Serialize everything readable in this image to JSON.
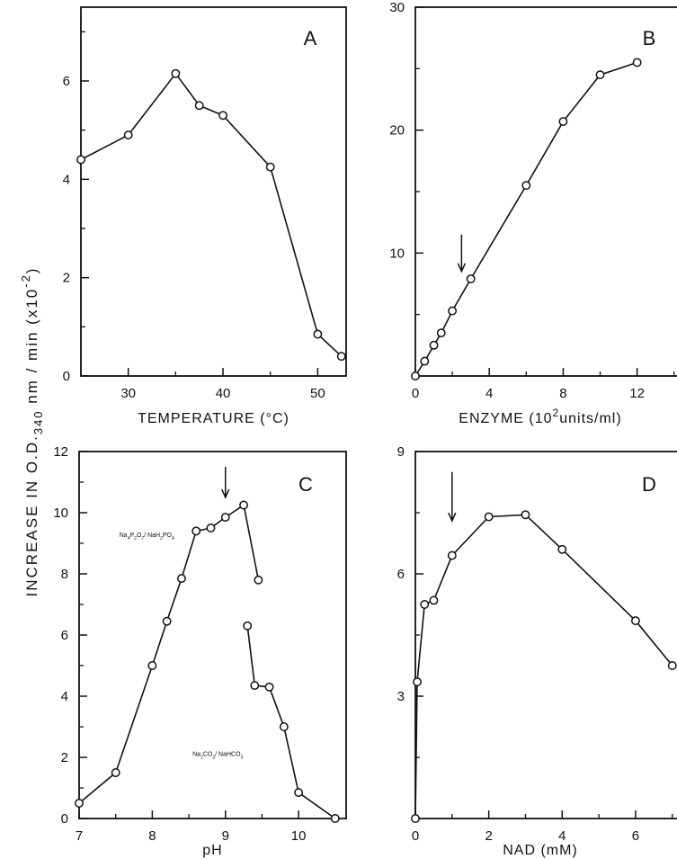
{
  "figure": {
    "ylabel": "INCREASE  IN  O.D.340 nm / min  (x10-2)",
    "ylabel_parts": {
      "prefix": "INCREASE  IN  O.D.",
      "subscript": "340",
      "suffix": " nm / min   (x10",
      "superscript": "-2",
      "close": ")"
    }
  },
  "chart_data": [
    {
      "id": "A",
      "type": "line",
      "panel_label": "A",
      "xlabel": "TEMPERATURE (°C)",
      "ylabel": "",
      "xlim": [
        25,
        53
      ],
      "ylim": [
        0,
        7.5
      ],
      "xticks": [
        30,
        40,
        50
      ],
      "xtick_labels": [
        "30",
        "40",
        "50"
      ],
      "yticks": [
        0,
        2,
        4,
        6
      ],
      "ytick_labels": [
        "0",
        "2",
        "4",
        "6"
      ],
      "y_minor_ticks": [
        1,
        3,
        5,
        7
      ],
      "x_minor_ticks": [
        25,
        35,
        45
      ],
      "grid": false,
      "series": [
        {
          "x": [
            25,
            30,
            35,
            37.5,
            40,
            45,
            50,
            52.5
          ],
          "y": [
            4.4,
            4.9,
            6.15,
            5.5,
            5.3,
            4.25,
            0.85,
            0.4
          ]
        }
      ],
      "annotations": []
    },
    {
      "id": "B",
      "type": "line",
      "panel_label": "B",
      "xlabel": "ENZYME (10²units/ml)",
      "xlabel_parts": {
        "prefix": "ENZYME (10",
        "superscript": "2",
        "suffix": "units/ml)"
      },
      "ylabel": "",
      "xlim": [
        0,
        14.5
      ],
      "ylim": [
        0,
        30
      ],
      "xticks": [
        0,
        4,
        8,
        12
      ],
      "xtick_labels": [
        "0",
        "4",
        "8",
        "12"
      ],
      "yticks": [
        10,
        20,
        30
      ],
      "ytick_labels": [
        "10",
        "20",
        "30"
      ],
      "y_minor_ticks": [
        5,
        15,
        25
      ],
      "x_minor_ticks": [
        2,
        6,
        10,
        14
      ],
      "grid": false,
      "series": [
        {
          "x": [
            0,
            0.5,
            1.0,
            1.4,
            2.0,
            3.0,
            6.0,
            8.0,
            10.0,
            12.0
          ],
          "y": [
            0,
            1.2,
            2.5,
            3.5,
            5.3,
            7.9,
            15.5,
            20.7,
            24.5,
            25.5
          ]
        }
      ],
      "arrows": [
        {
          "x": 2.5,
          "y_top": 11.5,
          "y_bottom": 8.5
        }
      ]
    },
    {
      "id": "C",
      "type": "line",
      "panel_label": "C",
      "xlabel": "pH",
      "ylabel": "",
      "xlim": [
        7,
        10.65
      ],
      "ylim": [
        0,
        12
      ],
      "xticks": [
        7,
        8,
        9,
        10
      ],
      "xtick_labels": [
        "7",
        "8",
        "9",
        "10"
      ],
      "yticks": [
        0,
        2,
        4,
        6,
        8,
        10,
        12
      ],
      "ytick_labels": [
        "0",
        "2",
        "4",
        "6",
        "8",
        "10",
        "12"
      ],
      "y_minor_ticks": [
        1,
        3,
        5,
        7,
        9,
        11
      ],
      "x_minor_ticks": [
        7.5,
        8.5,
        9.5,
        10.5
      ],
      "grid": false,
      "series": [
        {
          "x": [
            7.0,
            7.5,
            8.0,
            8.2,
            8.4,
            8.6,
            8.8,
            9.0,
            9.25,
            9.45
          ],
          "y": [
            0.5,
            1.5,
            5.0,
            6.45,
            7.85,
            9.4,
            9.5,
            9.85,
            10.25,
            7.8
          ]
        },
        {
          "x": [
            9.3,
            9.4,
            9.6,
            9.8,
            10.0,
            10.5
          ],
          "y": [
            6.3,
            4.35,
            4.3,
            3.0,
            0.85,
            0.0
          ]
        }
      ],
      "arrows": [
        {
          "x": 9.0,
          "y_top": 11.5,
          "y_bottom": 10.5
        }
      ],
      "annotations": [
        {
          "label_parts": {
            "a": "Na",
            "a_sub": "4",
            "b": "P",
            "b_sub": "2",
            "c": "O",
            "c_sub": "7",
            "d": "/ NaH",
            "d_sub": "2",
            "e": "PO",
            "e_sub": "4"
          },
          "x": 7.55,
          "y": 9.2
        },
        {
          "label_parts": {
            "a": "Na",
            "a_sub": "2",
            "b": "CO",
            "b_sub": "3",
            "c": "/ NaHCO",
            "c_sub": "3"
          },
          "x": 8.55,
          "y": 2.05
        }
      ]
    },
    {
      "id": "D",
      "type": "line",
      "panel_label": "D",
      "xlabel": "NAD (mM)",
      "ylabel": "",
      "xlim": [
        0,
        7.3
      ],
      "ylim": [
        0,
        9
      ],
      "xticks": [
        0,
        2,
        4,
        6
      ],
      "xtick_labels": [
        "0",
        "2",
        "4",
        "6"
      ],
      "yticks": [
        3,
        6,
        9
      ],
      "ytick_labels": [
        "3",
        "6",
        "9"
      ],
      "y_minor_ticks": [
        1.5,
        4.5,
        7.5
      ],
      "x_minor_ticks": [
        1,
        3,
        5,
        7
      ],
      "grid": false,
      "series": [
        {
          "x": [
            0,
            0.05,
            0.25,
            0.5,
            1.0,
            2.0,
            3.0,
            4.0,
            6.0,
            7.0
          ],
          "y": [
            0,
            3.35,
            5.25,
            5.35,
            6.45,
            7.4,
            7.45,
            6.6,
            4.85,
            3.75
          ]
        }
      ],
      "arrows": [
        {
          "x": 1.0,
          "y_top": 8.5,
          "y_bottom": 7.3
        }
      ]
    }
  ]
}
